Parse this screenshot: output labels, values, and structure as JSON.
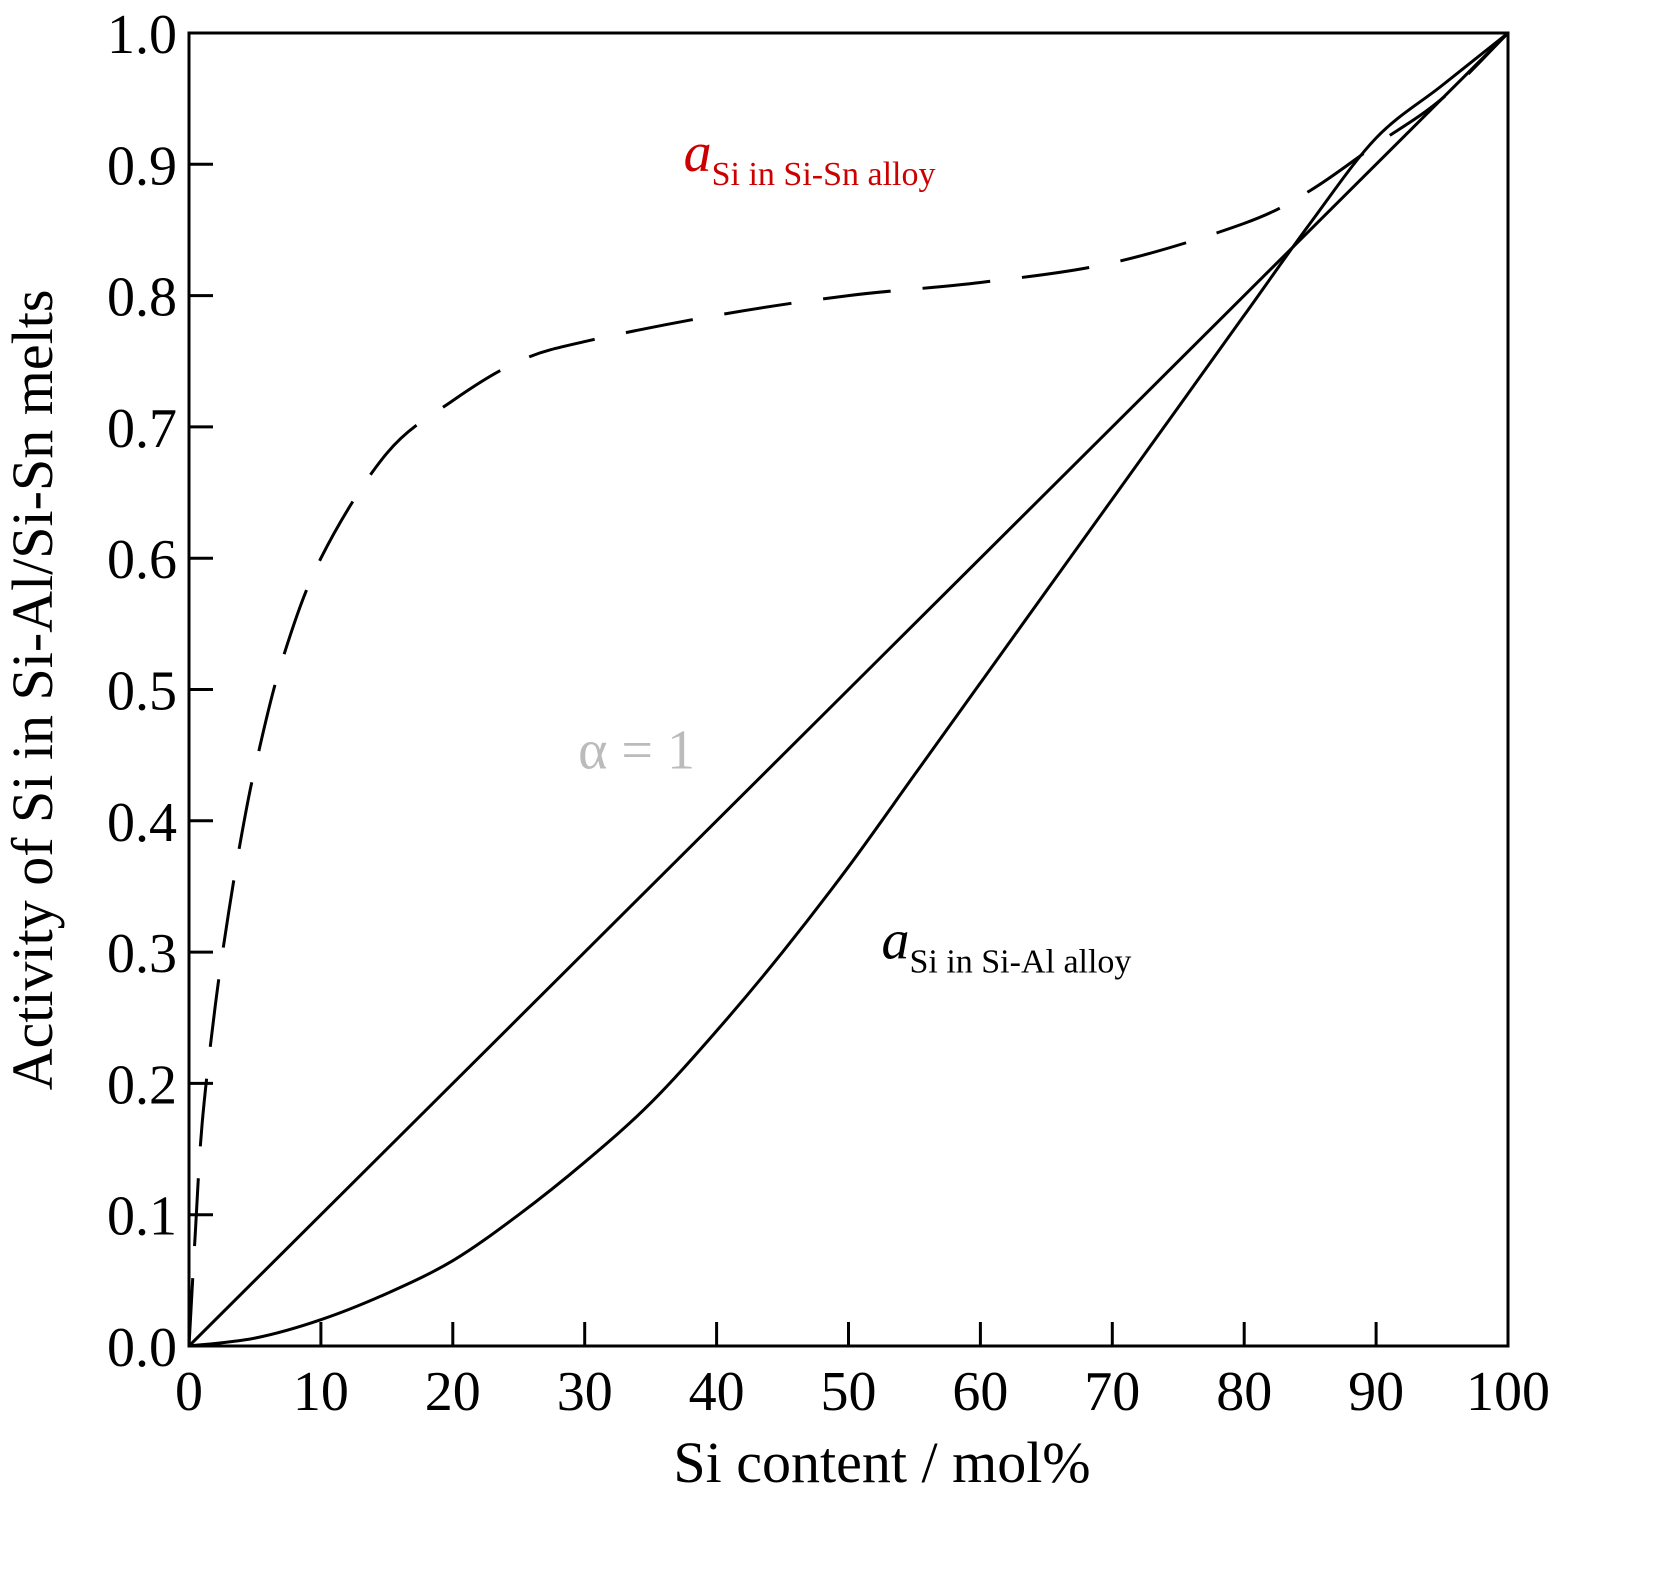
{
  "chart_data": {
    "type": "line",
    "xlabel": "Si content / mol%",
    "ylabel": "Activity of Si in Si-Al/Si-Sn melts",
    "xlim": [
      0,
      100
    ],
    "ylim": [
      0,
      1.0
    ],
    "xticks": [
      "0",
      "10",
      "20",
      "30",
      "40",
      "50",
      "60",
      "70",
      "80",
      "90",
      "100"
    ],
    "yticks": [
      "0.0",
      "0.1",
      "0.2",
      "0.3",
      "0.4",
      "0.5",
      "0.6",
      "0.7",
      "0.8",
      "0.9",
      "1.0"
    ],
    "grid": false,
    "series": [
      {
        "style": "dashed",
        "color": "#000000",
        "x": [
          0,
          0.5,
          1,
          2,
          3,
          4,
          5,
          7,
          10,
          15,
          20,
          25,
          30,
          40,
          50,
          60,
          70,
          80,
          85,
          90,
          95,
          100
        ],
        "y": [
          0,
          0.09,
          0.17,
          0.26,
          0.33,
          0.39,
          0.44,
          0.52,
          0.6,
          0.68,
          0.72,
          0.75,
          0.765,
          0.785,
          0.8,
          0.81,
          0.825,
          0.855,
          0.88,
          0.915,
          0.95,
          1.0
        ]
      },
      {
        "style": "solid",
        "color": "#000000",
        "x": [
          0,
          100
        ],
        "y": [
          0,
          1.0
        ]
      },
      {
        "style": "solid",
        "color": "#000000",
        "x": [
          0,
          5,
          10,
          15,
          20,
          25,
          30,
          35,
          40,
          45,
          50,
          55,
          60,
          65,
          70,
          75,
          80,
          85,
          90,
          95,
          100
        ],
        "y": [
          0,
          0.006,
          0.02,
          0.04,
          0.065,
          0.1,
          0.14,
          0.185,
          0.24,
          0.3,
          0.365,
          0.435,
          0.505,
          0.575,
          0.645,
          0.715,
          0.785,
          0.855,
          0.92,
          0.96,
          1.0
        ]
      }
    ],
    "annotations": [
      {
        "main": "a",
        "sub": "Si in Si-Sn alloy",
        "color": "#cc0000",
        "x": 37.5,
        "y": 0.895
      },
      {
        "main": "α = 1",
        "color": "#bbbbbb",
        "x": 29.5,
        "y": 0.44
      },
      {
        "main": "a",
        "sub": "Si in Si-Al alloy",
        "color": "#000000",
        "x": 52.5,
        "y": 0.295
      }
    ]
  }
}
